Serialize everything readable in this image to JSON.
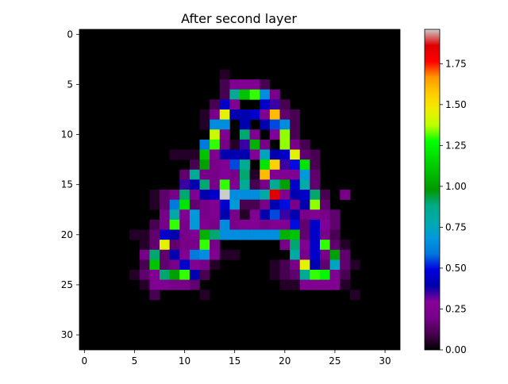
{
  "chart_data": {
    "type": "heatmap",
    "title": "After second layer",
    "rows": 32,
    "cols": 32,
    "x_ticks": [
      0,
      5,
      10,
      15,
      20,
      25,
      30
    ],
    "y_ticks": [
      0,
      5,
      10,
      15,
      20,
      25,
      30
    ],
    "colormap": "nipy_spectral",
    "vmin": 0,
    "vmax": 1.96,
    "colorbar_ticks": [
      "0.00",
      "0.25",
      "0.50",
      "0.75",
      "1.00",
      "1.25",
      "1.50",
      "1.75"
    ],
    "cells": [
      [
        4,
        14,
        0.05
      ],
      [
        5,
        14,
        0.1
      ],
      [
        5,
        15,
        0.25
      ],
      [
        5,
        16,
        0.25
      ],
      [
        5,
        17,
        0.25
      ],
      [
        5,
        18,
        0.1
      ],
      [
        6,
        14,
        0.1
      ],
      [
        6,
        15,
        0.85
      ],
      [
        6,
        16,
        1.1
      ],
      [
        6,
        17,
        1.3
      ],
      [
        6,
        18,
        0.65
      ],
      [
        6,
        19,
        0.2
      ],
      [
        7,
        13,
        0.1
      ],
      [
        7,
        14,
        0.45
      ],
      [
        7,
        15,
        0.25
      ],
      [
        7,
        18,
        0.45
      ],
      [
        7,
        19,
        0.35
      ],
      [
        7,
        20,
        0.1
      ],
      [
        8,
        12,
        0.05
      ],
      [
        8,
        13,
        0.2
      ],
      [
        8,
        14,
        1.45
      ],
      [
        8,
        15,
        0.4
      ],
      [
        8,
        16,
        0.4
      ],
      [
        8,
        17,
        0.45
      ],
      [
        8,
        18,
        0.25
      ],
      [
        8,
        19,
        1.6
      ],
      [
        8,
        20,
        0.15
      ],
      [
        8,
        21,
        0.1
      ],
      [
        9,
        12,
        0.05
      ],
      [
        9,
        13,
        0.65
      ],
      [
        9,
        14,
        0.65
      ],
      [
        9,
        16,
        0.4
      ],
      [
        9,
        18,
        0.4
      ],
      [
        9,
        19,
        0.55
      ],
      [
        9,
        20,
        0.65
      ],
      [
        9,
        21,
        0.1
      ],
      [
        10,
        13,
        1.4
      ],
      [
        10,
        14,
        0.25
      ],
      [
        10,
        16,
        0.9
      ],
      [
        10,
        17,
        0.25
      ],
      [
        10,
        19,
        0.3
      ],
      [
        10,
        20,
        1.35
      ],
      [
        10,
        21,
        0.1
      ],
      [
        11,
        12,
        0.6
      ],
      [
        11,
        13,
        1.3
      ],
      [
        11,
        14,
        0.2
      ],
      [
        11,
        15,
        0.05
      ],
      [
        11,
        16,
        0.35
      ],
      [
        11,
        17,
        1.05
      ],
      [
        11,
        18,
        0.2
      ],
      [
        11,
        20,
        1.35
      ],
      [
        11,
        21,
        0.2
      ],
      [
        11,
        22,
        0.1
      ],
      [
        12,
        9,
        0.05
      ],
      [
        12,
        10,
        0.05
      ],
      [
        12,
        11,
        0.05
      ],
      [
        12,
        12,
        1.1
      ],
      [
        12,
        13,
        0.25
      ],
      [
        12,
        14,
        0.4
      ],
      [
        12,
        15,
        0.4
      ],
      [
        12,
        16,
        0.4
      ],
      [
        12,
        17,
        0.25
      ],
      [
        12,
        18,
        0.75
      ],
      [
        12,
        19,
        0.4
      ],
      [
        12,
        20,
        0.45
      ],
      [
        12,
        21,
        1.45
      ],
      [
        12,
        22,
        0.15
      ],
      [
        12,
        23,
        0.1
      ],
      [
        13,
        11,
        0.1
      ],
      [
        13,
        12,
        1.0
      ],
      [
        13,
        13,
        0.2
      ],
      [
        13,
        14,
        0.25
      ],
      [
        13,
        15,
        0.55
      ],
      [
        13,
        16,
        0.85
      ],
      [
        13,
        18,
        1.2
      ],
      [
        13,
        19,
        1.55
      ],
      [
        13,
        20,
        0.35
      ],
      [
        13,
        21,
        0.5
      ],
      [
        13,
        22,
        1.2
      ],
      [
        13,
        23,
        0.1
      ],
      [
        14,
        10,
        0.15
      ],
      [
        14,
        11,
        0.85
      ],
      [
        14,
        12,
        0.2
      ],
      [
        14,
        13,
        0.2
      ],
      [
        14,
        14,
        0.3
      ],
      [
        14,
        15,
        0.2
      ],
      [
        14,
        16,
        0.9
      ],
      [
        14,
        17,
        0.05
      ],
      [
        14,
        18,
        1.6
      ],
      [
        14,
        19,
        0.25
      ],
      [
        14,
        20,
        0.25
      ],
      [
        14,
        21,
        0.25
      ],
      [
        14,
        22,
        0.7
      ],
      [
        14,
        23,
        0.15
      ],
      [
        15,
        10,
        0.35
      ],
      [
        15,
        11,
        0.4
      ],
      [
        15,
        12,
        0.9
      ],
      [
        15,
        13,
        0.2
      ],
      [
        15,
        14,
        1.3
      ],
      [
        15,
        15,
        0.25
      ],
      [
        15,
        16,
        0.85
      ],
      [
        15,
        17,
        0.1
      ],
      [
        15,
        18,
        0.2
      ],
      [
        15,
        19,
        0.85
      ],
      [
        15,
        20,
        1.0
      ],
      [
        15,
        21,
        0.45
      ],
      [
        15,
        22,
        0.8
      ],
      [
        15,
        23,
        0.15
      ],
      [
        16,
        7,
        0.05
      ],
      [
        16,
        8,
        0.15
      ],
      [
        16,
        9,
        0.2
      ],
      [
        16,
        10,
        0.9
      ],
      [
        16,
        11,
        0.25
      ],
      [
        16,
        12,
        0.4
      ],
      [
        16,
        13,
        0.45
      ],
      [
        16,
        14,
        1.96
      ],
      [
        16,
        15,
        0.65
      ],
      [
        16,
        16,
        0.65
      ],
      [
        16,
        17,
        0.65
      ],
      [
        16,
        18,
        0.8
      ],
      [
        16,
        19,
        1.85
      ],
      [
        16,
        20,
        0.25
      ],
      [
        16,
        21,
        0.4
      ],
      [
        16,
        22,
        0.45
      ],
      [
        16,
        23,
        0.9
      ],
      [
        16,
        24,
        0.1
      ],
      [
        16,
        26,
        0.2
      ],
      [
        17,
        7,
        0.05
      ],
      [
        17,
        8,
        0.15
      ],
      [
        17,
        9,
        0.6
      ],
      [
        17,
        10,
        1.2
      ],
      [
        17,
        11,
        0.15
      ],
      [
        17,
        12,
        0.2
      ],
      [
        17,
        13,
        0.25
      ],
      [
        17,
        14,
        0.45
      ],
      [
        17,
        15,
        0.7
      ],
      [
        17,
        16,
        0.1
      ],
      [
        17,
        17,
        0.1
      ],
      [
        17,
        18,
        0.2
      ],
      [
        17,
        19,
        0.4
      ],
      [
        17,
        20,
        0.5
      ],
      [
        17,
        21,
        0.2
      ],
      [
        17,
        22,
        0.4
      ],
      [
        17,
        23,
        1.35
      ],
      [
        17,
        24,
        0.15
      ],
      [
        18,
        8,
        0.2
      ],
      [
        18,
        9,
        0.8
      ],
      [
        18,
        10,
        0.25
      ],
      [
        18,
        11,
        0.7
      ],
      [
        18,
        12,
        0.2
      ],
      [
        18,
        13,
        0.25
      ],
      [
        18,
        14,
        0.4
      ],
      [
        18,
        15,
        0.2
      ],
      [
        18,
        16,
        0.05
      ],
      [
        18,
        17,
        0.25
      ],
      [
        18,
        18,
        0.4
      ],
      [
        18,
        19,
        0.55
      ],
      [
        18,
        20,
        0.35
      ],
      [
        18,
        21,
        0.4
      ],
      [
        18,
        22,
        0.2
      ],
      [
        18,
        23,
        0.25
      ],
      [
        18,
        24,
        0.2
      ],
      [
        18,
        25,
        0.15
      ],
      [
        19,
        7,
        0.1
      ],
      [
        19,
        8,
        0.2
      ],
      [
        19,
        9,
        1.3
      ],
      [
        19,
        10,
        0.2
      ],
      [
        19,
        11,
        0.7
      ],
      [
        19,
        12,
        0.25
      ],
      [
        19,
        13,
        0.2
      ],
      [
        19,
        14,
        0.65
      ],
      [
        19,
        15,
        0.2
      ],
      [
        19,
        16,
        0.25
      ],
      [
        19,
        17,
        0.25
      ],
      [
        19,
        18,
        0.2
      ],
      [
        19,
        19,
        0.25
      ],
      [
        19,
        20,
        0.25
      ],
      [
        19,
        21,
        0.5
      ],
      [
        19,
        22,
        0.15
      ],
      [
        19,
        23,
        0.45
      ],
      [
        19,
        24,
        0.3
      ],
      [
        19,
        25,
        0.15
      ],
      [
        20,
        5,
        0.05
      ],
      [
        20,
        6,
        0.05
      ],
      [
        20,
        7,
        0.15
      ],
      [
        20,
        8,
        0.45
      ],
      [
        20,
        9,
        0.4
      ],
      [
        20,
        10,
        0.2
      ],
      [
        20,
        11,
        0.25
      ],
      [
        20,
        12,
        1.05
      ],
      [
        20,
        13,
        0.9
      ],
      [
        20,
        14,
        0.65
      ],
      [
        20,
        15,
        0.65
      ],
      [
        20,
        16,
        0.65
      ],
      [
        20,
        17,
        0.65
      ],
      [
        20,
        18,
        0.65
      ],
      [
        20,
        19,
        0.65
      ],
      [
        20,
        20,
        1.05
      ],
      [
        20,
        21,
        1.1
      ],
      [
        20,
        22,
        0.15
      ],
      [
        20,
        23,
        0.45
      ],
      [
        20,
        24,
        0.2
      ],
      [
        20,
        25,
        0.1
      ],
      [
        21,
        6,
        0.05
      ],
      [
        21,
        7,
        0.15
      ],
      [
        21,
        8,
        1.45
      ],
      [
        21,
        9,
        0.15
      ],
      [
        21,
        10,
        0.2
      ],
      [
        21,
        11,
        0.2
      ],
      [
        21,
        12,
        1.3
      ],
      [
        21,
        13,
        0.2
      ],
      [
        21,
        20,
        0.2
      ],
      [
        21,
        21,
        0.9
      ],
      [
        21,
        22,
        0.25
      ],
      [
        21,
        23,
        0.45
      ],
      [
        21,
        24,
        1.3
      ],
      [
        21,
        25,
        0.15
      ],
      [
        21,
        26,
        0.05
      ],
      [
        22,
        6,
        0.2
      ],
      [
        22,
        7,
        0.9
      ],
      [
        22,
        8,
        0.15
      ],
      [
        22,
        9,
        0.4
      ],
      [
        22,
        10,
        0.25
      ],
      [
        22,
        11,
        0.6
      ],
      [
        22,
        12,
        0.65
      ],
      [
        22,
        13,
        0.25
      ],
      [
        22,
        14,
        0.05
      ],
      [
        22,
        15,
        0.05
      ],
      [
        22,
        21,
        0.8
      ],
      [
        22,
        22,
        0.2
      ],
      [
        22,
        23,
        0.45
      ],
      [
        22,
        24,
        0.2
      ],
      [
        22,
        25,
        1.0
      ],
      [
        22,
        26,
        0.15
      ],
      [
        23,
        6,
        0.1
      ],
      [
        23,
        7,
        1.1
      ],
      [
        23,
        8,
        0.15
      ],
      [
        23,
        9,
        0.2
      ],
      [
        23,
        10,
        0.45
      ],
      [
        23,
        11,
        0.25
      ],
      [
        23,
        12,
        0.2
      ],
      [
        23,
        13,
        0.05
      ],
      [
        23,
        19,
        0.05
      ],
      [
        23,
        20,
        0.1
      ],
      [
        23,
        21,
        0.2
      ],
      [
        23,
        22,
        1.45
      ],
      [
        23,
        23,
        0.4
      ],
      [
        23,
        24,
        0.15
      ],
      [
        23,
        25,
        0.75
      ],
      [
        23,
        26,
        0.15
      ],
      [
        23,
        27,
        0.05
      ],
      [
        24,
        5,
        0.05
      ],
      [
        24,
        6,
        0.15
      ],
      [
        24,
        7,
        0.25
      ],
      [
        24,
        8,
        0.9
      ],
      [
        24,
        9,
        1.0
      ],
      [
        24,
        10,
        1.3
      ],
      [
        24,
        11,
        0.4
      ],
      [
        24,
        12,
        0.1
      ],
      [
        24,
        19,
        0.05
      ],
      [
        24,
        20,
        0.1
      ],
      [
        24,
        21,
        0.15
      ],
      [
        24,
        22,
        0.85
      ],
      [
        24,
        23,
        1.3
      ],
      [
        24,
        24,
        1.25
      ],
      [
        24,
        25,
        0.25
      ],
      [
        24,
        26,
        0.1
      ],
      [
        25,
        6,
        0.05
      ],
      [
        25,
        7,
        0.25
      ],
      [
        25,
        8,
        0.25
      ],
      [
        25,
        9,
        0.2
      ],
      [
        25,
        10,
        0.2
      ],
      [
        25,
        11,
        0.15
      ],
      [
        25,
        20,
        0.05
      ],
      [
        25,
        21,
        0.05
      ],
      [
        25,
        22,
        0.25
      ],
      [
        25,
        23,
        0.25
      ],
      [
        25,
        24,
        0.25
      ],
      [
        25,
        25,
        0.25
      ],
      [
        25,
        26,
        0.05
      ],
      [
        26,
        7,
        0.1
      ],
      [
        26,
        12,
        0.05
      ],
      [
        26,
        27,
        0.05
      ]
    ]
  }
}
